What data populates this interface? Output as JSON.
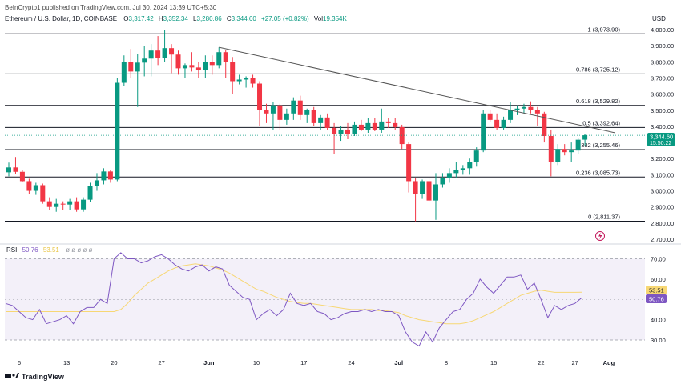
{
  "header": {
    "publisher": "BeInCrypto1 published on TradingView.com, Jul 30, 2024 13:39 UTC+5:30",
    "symbol": "Ethereum / U.S. Dollar, 1D, COINBASE",
    "o_label": "O",
    "o_value": "3,317.42",
    "h_label": "H",
    "h_value": "3,352.34",
    "l_label": "L",
    "l_value": "3,280.86",
    "c_label": "C",
    "c_value": "3,344.60",
    "change": "+27.05 (+0.82%)",
    "vol_label": "Vol",
    "vol_value": "19.354K"
  },
  "currency": "USD",
  "price_tag": {
    "price": "3,344.60",
    "countdown": "15:50:22"
  },
  "branding": "TradingView",
  "colors": {
    "up": "#089981",
    "down": "#f23645",
    "rsi": "#7e57c2",
    "rsi_ma": "#f7d774",
    "grid": "#e0e3eb",
    "fib_line": "#131722",
    "trend": "#555555"
  },
  "rsi_legend": {
    "label": "RSI",
    "value": "50.76",
    "ma_value": "53.51"
  },
  "rsi_tags": {
    "rsi": "50.76",
    "ma": "53.51"
  },
  "fib_levels": [
    {
      "ratio": 1,
      "label": "1 (3,973.90)",
      "price": 3973.9
    },
    {
      "ratio": 0.786,
      "label": "0.786 (3,725.12)",
      "price": 3725.12
    },
    {
      "ratio": 0.618,
      "label": "0.618 (3,529.82)",
      "price": 3529.82
    },
    {
      "ratio": 0.5,
      "label": "0.5 (3,392.64)",
      "price": 3392.64
    },
    {
      "ratio": 0.382,
      "label": "0.382 (3,255.46)",
      "price": 3255.46
    },
    {
      "ratio": 0.236,
      "label": "0.236 (3,085.73)",
      "price": 3085.73
    },
    {
      "ratio": 0,
      "label": "0 (2,811.37)",
      "price": 2811.37
    }
  ],
  "chart_data": {
    "type": "candlestick",
    "title": "Ethereum / U.S. Dollar, 1D, COINBASE",
    "ylabel": "USD",
    "price_ylim": [
      2700,
      4100
    ],
    "price_ticks": [
      "4,000.00",
      "3,900.00",
      "3,800.00",
      "3,700.00",
      "3,600.00",
      "3,500.00",
      "3,400.00",
      "3,300.00",
      "3,200.00",
      "3,100.00",
      "3,000.00",
      "2,900.00",
      "2,800.00",
      "2,700.00"
    ],
    "x_tick_labels": [
      "6",
      "13",
      "20",
      "27",
      "Jun",
      "10",
      "17",
      "24",
      "Jul",
      "8",
      "15",
      "22",
      "27",
      "Aug"
    ],
    "x_tick_index": [
      2,
      9,
      16,
      23,
      30,
      37,
      44,
      51,
      58,
      65,
      72,
      79,
      84,
      89
    ],
    "start_date": "2024-05-04",
    "ohlc": [
      [
        3115,
        3175,
        3090,
        3145
      ],
      [
        3145,
        3210,
        3105,
        3118
      ],
      [
        3118,
        3130,
        3055,
        3060
      ],
      [
        3060,
        3075,
        2980,
        3000
      ],
      [
        3000,
        3050,
        2975,
        3035
      ],
      [
        3035,
        3045,
        2920,
        2935
      ],
      [
        2935,
        2960,
        2880,
        2900
      ],
      [
        2900,
        2950,
        2870,
        2920
      ],
      [
        2920,
        2935,
        2880,
        2915
      ],
      [
        2915,
        2950,
        2880,
        2935
      ],
      [
        2935,
        2960,
        2870,
        2885
      ],
      [
        2885,
        2960,
        2870,
        2945
      ],
      [
        2945,
        3050,
        2930,
        3030
      ],
      [
        3030,
        3110,
        3000,
        3065
      ],
      [
        3065,
        3140,
        3040,
        3120
      ],
      [
        3120,
        3130,
        3050,
        3070
      ],
      [
        3070,
        3700,
        3060,
        3670
      ],
      [
        3670,
        3840,
        3650,
        3800
      ],
      [
        3800,
        3880,
        3700,
        3740
      ],
      [
        3740,
        3850,
        3520,
        3795
      ],
      [
        3795,
        3900,
        3710,
        3820
      ],
      [
        3820,
        3910,
        3710,
        3870
      ],
      [
        3870,
        3960,
        3780,
        3825
      ],
      [
        3825,
        4000,
        3800,
        3885
      ],
      [
        3885,
        3910,
        3730,
        3845
      ],
      [
        3845,
        3870,
        3720,
        3760
      ],
      [
        3760,
        3790,
        3700,
        3780
      ],
      [
        3780,
        3860,
        3740,
        3765
      ],
      [
        3765,
        3800,
        3700,
        3750
      ],
      [
        3750,
        3840,
        3700,
        3800
      ],
      [
        3800,
        3840,
        3720,
        3780
      ],
      [
        3780,
        3890,
        3760,
        3860
      ],
      [
        3860,
        3875,
        3700,
        3800
      ],
      [
        3800,
        3830,
        3600,
        3680
      ],
      [
        3680,
        3720,
        3660,
        3690
      ],
      [
        3690,
        3710,
        3640,
        3700
      ],
      [
        3700,
        3720,
        3640,
        3665
      ],
      [
        3665,
        3680,
        3400,
        3500
      ],
      [
        3500,
        3540,
        3420,
        3480
      ],
      [
        3480,
        3550,
        3380,
        3530
      ],
      [
        3530,
        3540,
        3380,
        3440
      ],
      [
        3440,
        3510,
        3410,
        3480
      ],
      [
        3480,
        3580,
        3440,
        3560
      ],
      [
        3560,
        3590,
        3440,
        3470
      ],
      [
        3470,
        3510,
        3420,
        3500
      ],
      [
        3500,
        3520,
        3400,
        3420
      ],
      [
        3420,
        3470,
        3380,
        3455
      ],
      [
        3455,
        3480,
        3380,
        3390
      ],
      [
        3390,
        3420,
        3230,
        3350
      ],
      [
        3350,
        3400,
        3310,
        3380
      ],
      [
        3380,
        3420,
        3320,
        3355
      ],
      [
        3355,
        3430,
        3340,
        3410
      ],
      [
        3410,
        3440,
        3370,
        3380
      ],
      [
        3380,
        3450,
        3360,
        3420
      ],
      [
        3420,
        3450,
        3370,
        3380
      ],
      [
        3380,
        3510,
        3360,
        3430
      ],
      [
        3430,
        3450,
        3390,
        3420
      ],
      [
        3420,
        3450,
        3380,
        3395
      ],
      [
        3395,
        3410,
        3260,
        3290
      ],
      [
        3290,
        3300,
        2990,
        3060
      ],
      [
        3060,
        3080,
        2811,
        2980
      ],
      [
        2980,
        3070,
        2950,
        3060
      ],
      [
        3060,
        3080,
        2930,
        2940
      ],
      [
        2940,
        3110,
        2820,
        3040
      ],
      [
        3040,
        3110,
        3020,
        3080
      ],
      [
        3080,
        3140,
        3050,
        3110
      ],
      [
        3110,
        3180,
        3080,
        3130
      ],
      [
        3130,
        3160,
        3100,
        3140
      ],
      [
        3140,
        3200,
        3100,
        3180
      ],
      [
        3180,
        3270,
        3150,
        3250
      ],
      [
        3250,
        3500,
        3240,
        3480
      ],
      [
        3480,
        3500,
        3430,
        3440
      ],
      [
        3440,
        3480,
        3380,
        3390
      ],
      [
        3390,
        3460,
        3380,
        3440
      ],
      [
        3440,
        3550,
        3420,
        3500
      ],
      [
        3500,
        3530,
        3470,
        3510
      ],
      [
        3510,
        3540,
        3480,
        3520
      ],
      [
        3520,
        3555,
        3480,
        3500
      ],
      [
        3500,
        3520,
        3400,
        3480
      ],
      [
        3480,
        3490,
        3300,
        3340
      ],
      [
        3340,
        3380,
        3090,
        3180
      ],
      [
        3180,
        3290,
        3160,
        3260
      ],
      [
        3260,
        3290,
        3220,
        3240
      ],
      [
        3240,
        3300,
        3180,
        3250
      ],
      [
        3250,
        3330,
        3230,
        3317
      ],
      [
        3317.42,
        3352.34,
        3280.86,
        3344.6
      ]
    ],
    "trendline": [
      {
        "i": 31,
        "price": 3890
      },
      {
        "i": 89,
        "price": 3360
      }
    ],
    "rsi": {
      "ylim": [
        25,
        75
      ],
      "ticks": [
        "70.00",
        "60.00",
        "50.00",
        "40.00",
        "30.00"
      ],
      "overbought": 70,
      "oversold": 30,
      "values": [
        48,
        47,
        44,
        41,
        40,
        45,
        38,
        39,
        40,
        42,
        38,
        44,
        46,
        46,
        50,
        48,
        70,
        73,
        70,
        70,
        68,
        69,
        71,
        72,
        70,
        67,
        65,
        64,
        66,
        67,
        64,
        66,
        65,
        57,
        54,
        51,
        50,
        40,
        43,
        45,
        42,
        45,
        53,
        48,
        47,
        48,
        44,
        43,
        40,
        41,
        43,
        44,
        44,
        45,
        44,
        45,
        44,
        44,
        42,
        34,
        29,
        27,
        34,
        29,
        36,
        40,
        44,
        45,
        50,
        53,
        60,
        56,
        53,
        57,
        61,
        61,
        62,
        55,
        58,
        50,
        41,
        47,
        45,
        47,
        48,
        50.76
      ],
      "ma": [
        44,
        44,
        44,
        44,
        44,
        44,
        44,
        44,
        44,
        44,
        44,
        44,
        44,
        44,
        44,
        44,
        44,
        45,
        48,
        52,
        55,
        58,
        60,
        62,
        64,
        65.5,
        66.5,
        67,
        67.5,
        67,
        66.5,
        65.5,
        64.5,
        63,
        61,
        59,
        57,
        55,
        54,
        52.5,
        51,
        50,
        49,
        48.5,
        48,
        48,
        47.5,
        47,
        46.5,
        46,
        45.5,
        45,
        45,
        45,
        45,
        44.5,
        44.5,
        44,
        43.5,
        42,
        41,
        40,
        39.5,
        39,
        38.5,
        38,
        38,
        38,
        38.5,
        39.5,
        41,
        42.5,
        44,
        46,
        48,
        50,
        52,
        53,
        54,
        54.5,
        54,
        53.5,
        53.5,
        53.5,
        53.5,
        53.51
      ]
    }
  }
}
